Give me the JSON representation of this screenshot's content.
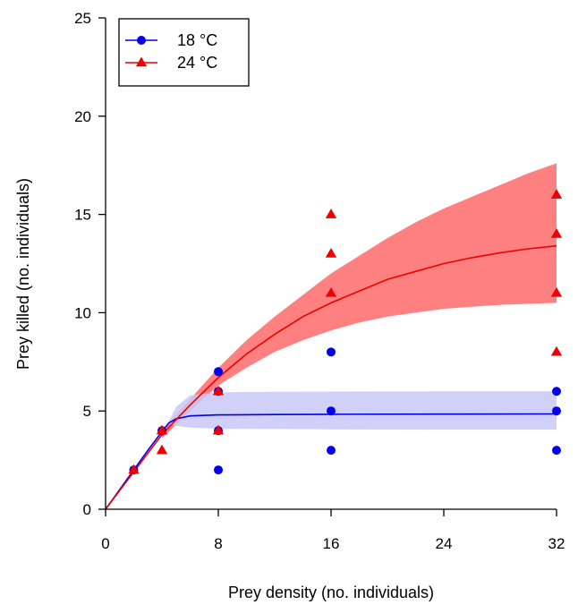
{
  "chart_data": {
    "type": "scatter",
    "title": "",
    "xlabel": "Prey density (no. individuals)",
    "ylabel": "Prey killed (no. individuals)",
    "xlim": [
      0,
      32
    ],
    "ylim": [
      0,
      25
    ],
    "xticks": [
      0,
      8,
      16,
      24,
      32
    ],
    "yticks": [
      0,
      5,
      10,
      15,
      20,
      25
    ],
    "xtick_labels": [
      "0",
      "8",
      "16",
      "24",
      "32"
    ],
    "ytick_labels": [
      "0",
      "5",
      "10",
      "15",
      "20",
      "25"
    ],
    "grid": false,
    "legend_position": "top-left",
    "series": [
      {
        "name": "18 °C",
        "color": "#0000ee",
        "band_color": "#c8c8f8",
        "marker": "circle",
        "points": [
          {
            "x": 2,
            "y": 2
          },
          {
            "x": 4,
            "y": 4
          },
          {
            "x": 8,
            "y": 2
          },
          {
            "x": 8,
            "y": 4
          },
          {
            "x": 8,
            "y": 6
          },
          {
            "x": 8,
            "y": 7
          },
          {
            "x": 16,
            "y": 3
          },
          {
            "x": 16,
            "y": 5
          },
          {
            "x": 16,
            "y": 8
          },
          {
            "x": 32,
            "y": 3
          },
          {
            "x": 32,
            "y": 5
          },
          {
            "x": 32,
            "y": 6
          }
        ],
        "fit": {
          "x": [
            0,
            1,
            2,
            3,
            4,
            4.5,
            5,
            6,
            8,
            12,
            16,
            24,
            32
          ],
          "y": [
            0,
            1,
            2,
            3,
            3.95,
            4.4,
            4.6,
            4.75,
            4.8,
            4.82,
            4.83,
            4.84,
            4.85
          ]
        },
        "band": {
          "x": [
            4.5,
            5,
            6,
            8,
            12,
            16,
            24,
            32
          ],
          "lower": [
            4.35,
            4.25,
            4.15,
            4.1,
            4.08,
            4.06,
            4.05,
            4.05
          ],
          "upper": [
            4.5,
            5.2,
            5.8,
            5.95,
            5.98,
            5.99,
            6.0,
            6.0
          ]
        }
      },
      {
        "name": "24 °C",
        "color": "#ee0000",
        "band_color": "#ff8080",
        "marker": "triangle",
        "points": [
          {
            "x": 2,
            "y": 2
          },
          {
            "x": 4,
            "y": 3
          },
          {
            "x": 4,
            "y": 4
          },
          {
            "x": 8,
            "y": 4
          },
          {
            "x": 8,
            "y": 6
          },
          {
            "x": 16,
            "y": 11
          },
          {
            "x": 16,
            "y": 13
          },
          {
            "x": 16,
            "y": 15
          },
          {
            "x": 32,
            "y": 8
          },
          {
            "x": 32,
            "y": 11
          },
          {
            "x": 32,
            "y": 14
          },
          {
            "x": 32,
            "y": 16
          }
        ],
        "fit": {
          "x": [
            0,
            2,
            4,
            6,
            8,
            10,
            12,
            14,
            16,
            18,
            20,
            22,
            24,
            26,
            28,
            30,
            32
          ],
          "y": [
            0,
            1.9,
            3.8,
            5.3,
            6.7,
            7.9,
            8.9,
            9.8,
            10.5,
            11.1,
            11.7,
            12.1,
            12.5,
            12.8,
            13.05,
            13.25,
            13.4
          ]
        },
        "band": {
          "x": [
            4,
            6,
            8,
            10,
            12,
            14,
            16,
            18,
            20,
            22,
            24,
            26,
            28,
            30,
            32
          ],
          "lower": [
            3.6,
            5.0,
            6.3,
            7.2,
            8.0,
            8.6,
            9.1,
            9.5,
            9.8,
            10.0,
            10.2,
            10.3,
            10.4,
            10.45,
            10.5
          ],
          "upper": [
            4.0,
            5.6,
            7.2,
            8.6,
            9.8,
            10.9,
            12.0,
            12.9,
            13.8,
            14.6,
            15.3,
            15.9,
            16.5,
            17.1,
            17.6
          ]
        }
      }
    ]
  }
}
